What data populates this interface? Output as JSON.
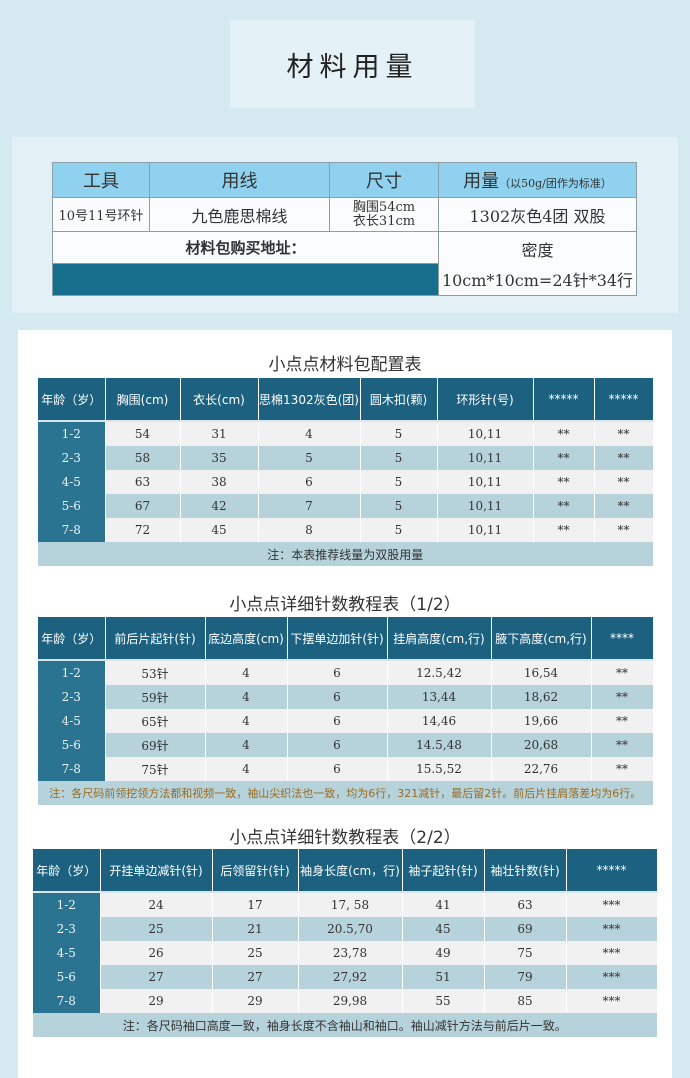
{
  "title": "材料用量",
  "materials": {
    "headers": {
      "tool": "工具",
      "yarn": "用线",
      "size": "尺寸",
      "amount": "用量",
      "amount_note": "（以50g/团作为标准）"
    },
    "tool": "10号11号环针",
    "yarn": "九色鹿思棉线",
    "size_chest": "胸围54cm",
    "size_length": "衣长31cm",
    "amount": "1302灰色4团 双股",
    "buy_label": "材料包购买地址：",
    "density_label": "密度",
    "density_value": "10cm*10cm=24针*34行"
  },
  "tables": [
    {
      "title": "小点点材料包配置表",
      "headers": [
        "年龄（岁）",
        "胸围(cm)",
        "衣长(cm)",
        "思棉1302灰色(团)",
        "圆木扣(颗)",
        "环形针(号)",
        "*****",
        "*****"
      ],
      "rows": [
        [
          "1-2",
          "54",
          "31",
          "4",
          "5",
          "10,11",
          "**",
          "**"
        ],
        [
          "2-3",
          "58",
          "35",
          "5",
          "5",
          "10,11",
          "**",
          "**"
        ],
        [
          "4-5",
          "63",
          "38",
          "6",
          "5",
          "10,11",
          "**",
          "**"
        ],
        [
          "5-6",
          "67",
          "42",
          "7",
          "5",
          "10,11",
          "**",
          "**"
        ],
        [
          "7-8",
          "72",
          "45",
          "8",
          "5",
          "10,11",
          "**",
          "**"
        ]
      ],
      "note": "注：本表推荐线量为双股用量"
    },
    {
      "title": "小点点详细针数教程表（1/2）",
      "headers": [
        "年龄（岁）",
        "前后片起针(针)",
        "底边高度(cm)",
        "下摆单边加针(针)",
        "挂肩高度(cm,行)",
        "腋下高度(cm,行)",
        "****"
      ],
      "rows": [
        [
          "1-2",
          "53针",
          "4",
          "6",
          "12.5,42",
          "16,54",
          "**"
        ],
        [
          "2-3",
          "59针",
          "4",
          "6",
          "13,44",
          "18,62",
          "**"
        ],
        [
          "4-5",
          "65针",
          "4",
          "6",
          "14,46",
          "19,66",
          "**"
        ],
        [
          "5-6",
          "69针",
          "4",
          "6",
          "14.5,48",
          "20,68",
          "**"
        ],
        [
          "7-8",
          "75针",
          "4",
          "6",
          "15.5,52",
          "22,76",
          "**"
        ]
      ],
      "note": "注：各尺码前领挖领方法都和视频一致，袖山尖织法也一致，均为6行，321减针，最后留2针。前后片挂肩落差均为6行。"
    },
    {
      "title": "小点点详细针数教程表（2/2）",
      "headers": [
        "年龄（岁）",
        "开挂单边减针(针)",
        "后领留针(针)",
        "袖身长度(cm，行)",
        "袖子起针(针)",
        "袖壮针数(针)",
        "*****"
      ],
      "rows": [
        [
          "1-2",
          "24",
          "17",
          "17, 58",
          "41",
          "63",
          "***"
        ],
        [
          "2-3",
          "25",
          "21",
          "20.5,70",
          "45",
          "69",
          "***"
        ],
        [
          "4-5",
          "26",
          "25",
          "23,78",
          "49",
          "75",
          "***"
        ],
        [
          "5-6",
          "27",
          "27",
          "27,92",
          "51",
          "79",
          "***"
        ],
        [
          "7-8",
          "29",
          "29",
          "29,98",
          "55",
          "85",
          "***"
        ]
      ],
      "note": "注：各尺码袖口高度一致，袖身长度不含袖山和袖口。袖山减针方法与前后片一致。"
    }
  ]
}
